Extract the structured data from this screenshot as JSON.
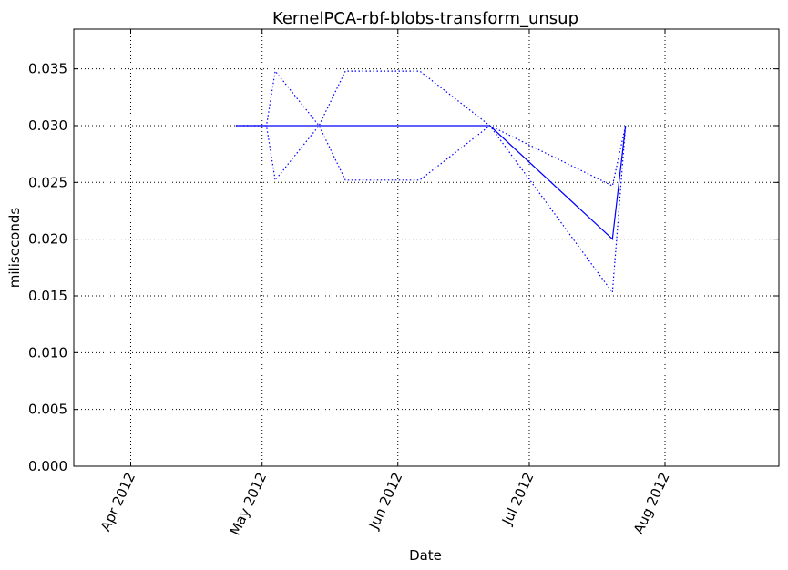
{
  "chart_data": {
    "type": "line",
    "title": "KernelPCA-rbf-blobs-transform_unsup",
    "xlabel": "Date",
    "ylabel": "miliseconds",
    "x_axis_type": "date",
    "xlim": [
      "2012-03-19",
      "2012-08-27"
    ],
    "ylim": [
      0,
      0.0385
    ],
    "x_ticks": [
      {
        "date": "2012-04-01",
        "label": "Apr 2012"
      },
      {
        "date": "2012-05-01",
        "label": "May 2012"
      },
      {
        "date": "2012-06-01",
        "label": "Jun 2012"
      },
      {
        "date": "2012-07-01",
        "label": "Jul 2012"
      },
      {
        "date": "2012-08-01",
        "label": "Aug 2012"
      }
    ],
    "y_ticks": [
      {
        "value": 0.0,
        "label": "0.000"
      },
      {
        "value": 0.005,
        "label": "0.005"
      },
      {
        "value": 0.01,
        "label": "0.010"
      },
      {
        "value": 0.015,
        "label": "0.015"
      },
      {
        "value": 0.02,
        "label": "0.020"
      },
      {
        "value": 0.025,
        "label": "0.025"
      },
      {
        "value": 0.03,
        "label": "0.030"
      },
      {
        "value": 0.035,
        "label": "0.035"
      }
    ],
    "grid": true,
    "colors": {
      "line": "#0000ff",
      "grid": "#000000",
      "axes": "#000000"
    },
    "series": [
      {
        "style": "solid",
        "x": [
          "2012-04-25",
          "2012-05-02",
          "2012-05-04",
          "2012-05-14",
          "2012-05-20",
          "2012-06-01",
          "2012-06-06",
          "2012-06-22",
          "2012-07-20",
          "2012-07-23"
        ],
        "y": [
          0.03,
          0.03,
          0.03,
          0.03,
          0.03,
          0.03,
          0.03,
          0.03,
          0.02,
          0.03
        ]
      },
      {
        "style": "dotted",
        "x": [
          "2012-04-25",
          "2012-05-02",
          "2012-05-04",
          "2012-05-14",
          "2012-05-20",
          "2012-06-01",
          "2012-06-06",
          "2012-06-22",
          "2012-07-20",
          "2012-07-23"
        ],
        "y": [
          0.03,
          0.03,
          0.0348,
          0.03,
          0.0348,
          0.0348,
          0.0348,
          0.03,
          0.0247,
          0.03
        ]
      },
      {
        "style": "dotted",
        "x": [
          "2012-04-25",
          "2012-05-02",
          "2012-05-04",
          "2012-05-14",
          "2012-05-20",
          "2012-06-01",
          "2012-06-06",
          "2012-06-22",
          "2012-07-20",
          "2012-07-23"
        ],
        "y": [
          0.03,
          0.03,
          0.0252,
          0.03,
          0.0252,
          0.0252,
          0.0252,
          0.03,
          0.0153,
          0.03
        ]
      }
    ]
  }
}
